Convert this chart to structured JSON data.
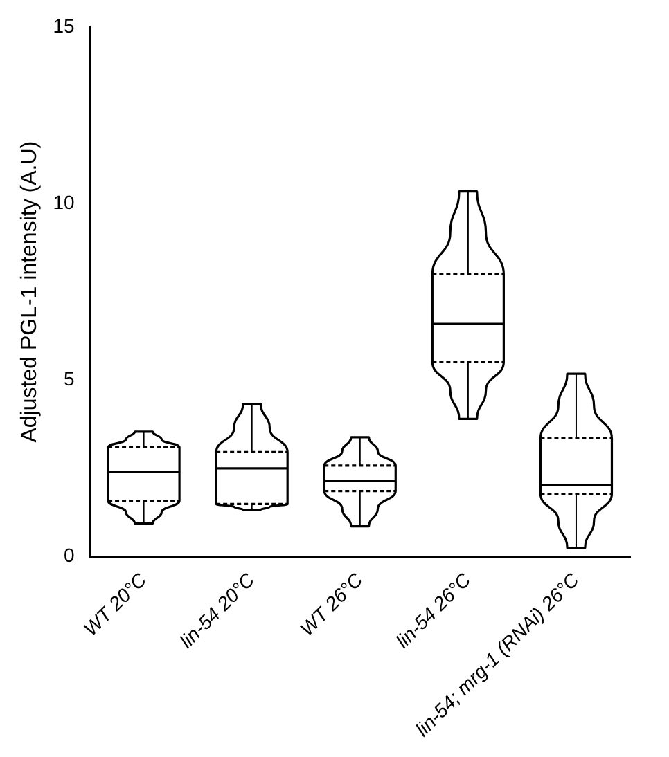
{
  "chart_data": {
    "type": "box",
    "ylabel": "Adjusted PGL-1 intensity (A.U)",
    "categories": [
      "WT 20°C",
      "lin-54 20°C",
      "WT 26°C",
      "lin-54 26°C",
      "lin-54; mrg-1 (RNAi) 26°C"
    ],
    "boxes": [
      {
        "low": 0.94,
        "q1": 1.58,
        "median": 2.39,
        "q3": 3.1,
        "high": 3.54
      },
      {
        "low": 1.33,
        "q1": 1.49,
        "median": 2.5,
        "q3": 2.96,
        "high": 4.32
      },
      {
        "low": 0.86,
        "q1": 1.86,
        "median": 2.14,
        "q3": 2.58,
        "high": 3.38
      },
      {
        "low": 3.9,
        "q1": 5.51,
        "median": 6.59,
        "q3": 8.0,
        "high": 10.34
      },
      {
        "low": 0.25,
        "q1": 1.78,
        "median": 2.03,
        "q3": 3.35,
        "high": 5.18
      }
    ],
    "color": "#000000",
    "ylim": [
      0,
      15
    ],
    "yticks": [
      0,
      5,
      10,
      15
    ],
    "grid": false,
    "legend": false
  }
}
